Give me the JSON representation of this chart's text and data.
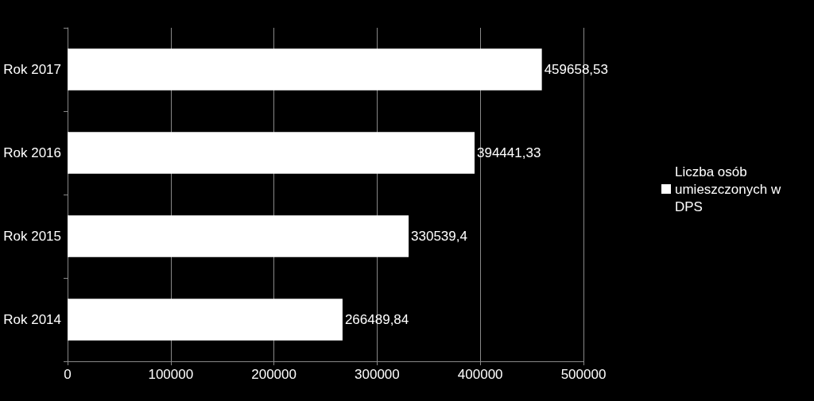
{
  "chart_data": {
    "type": "bar",
    "orientation": "horizontal",
    "categories": [
      "Rok 2017",
      "Rok 2016",
      "Rok 2015",
      "Rok 2014"
    ],
    "series": [
      {
        "name": "Liczba osób umieszczonych w DPS",
        "color": "#ffffff",
        "values": [
          459658.53,
          394441.33,
          330539.4,
          266489.84
        ],
        "value_labels": [
          "459658,53",
          "394441,33",
          "330539,4",
          "266489,84"
        ]
      }
    ],
    "xlim": [
      0,
      500000
    ],
    "xticks": [
      0,
      100000,
      200000,
      300000,
      400000,
      500000
    ],
    "grid": "x",
    "legend": "right"
  }
}
